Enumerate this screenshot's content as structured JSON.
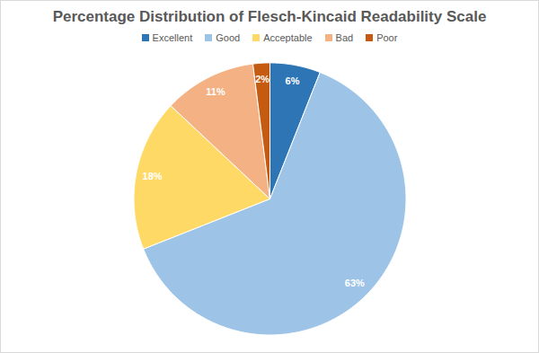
{
  "chart_data": {
    "type": "pie",
    "title": "Percentage Distribution of Flesch-Kincaid Readability Scale",
    "categories": [
      "Excellent",
      "Good",
      "Acceptable",
      "Bad",
      "Poor"
    ],
    "values": [
      6,
      63,
      18,
      11,
      2
    ],
    "value_labels": [
      "6%",
      "63%",
      "18%",
      "11%",
      "2%"
    ],
    "colors": [
      "#2e75b6",
      "#9dc3e6",
      "#ffd966",
      "#f4b183",
      "#c55a11"
    ],
    "data_labels": true,
    "legend": "top"
  }
}
